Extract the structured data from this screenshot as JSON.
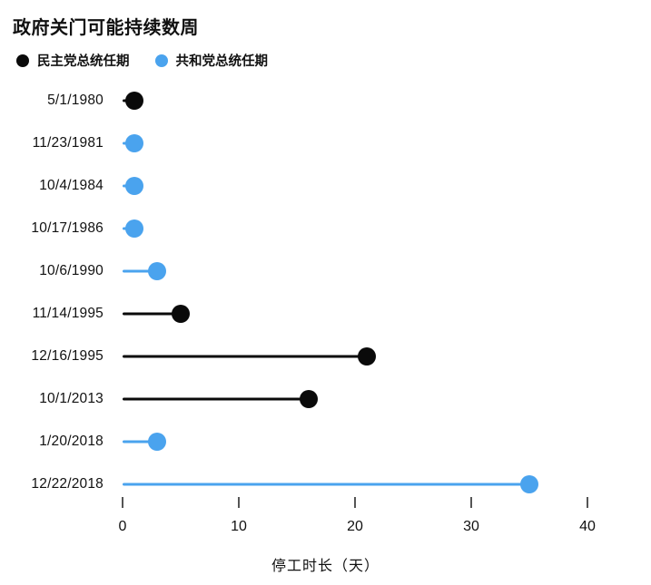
{
  "title": "政府关门可能持续数周",
  "legend": [
    {
      "label": "民主党总统任期",
      "party": "democrat"
    },
    {
      "label": "共和党总统任期",
      "party": "republican"
    }
  ],
  "colors": {
    "democrat": "#0a0a0a",
    "republican": "#4aa3ee",
    "background": "#ffffff",
    "tick": "#555555",
    "text": "#111111"
  },
  "chart_data": {
    "type": "bar",
    "variant": "horizontal-lollipop",
    "title": "政府关门可能持续数周",
    "categories": [
      "5/1/1980",
      "11/23/1981",
      "10/4/1984",
      "10/17/1986",
      "10/6/1990",
      "11/14/1995",
      "12/16/1995",
      "10/1/2013",
      "1/20/2018",
      "12/22/2018"
    ],
    "values": [
      1,
      1,
      1,
      1,
      3,
      5,
      21,
      16,
      3,
      35
    ],
    "points": [
      {
        "date": "5/1/1980",
        "days": 1,
        "party": "democrat"
      },
      {
        "date": "11/23/1981",
        "days": 1,
        "party": "republican"
      },
      {
        "date": "10/4/1984",
        "days": 1,
        "party": "republican"
      },
      {
        "date": "10/17/1986",
        "days": 1,
        "party": "republican"
      },
      {
        "date": "10/6/1990",
        "days": 3,
        "party": "republican"
      },
      {
        "date": "11/14/1995",
        "days": 5,
        "party": "democrat"
      },
      {
        "date": "12/16/1995",
        "days": 21,
        "party": "democrat"
      },
      {
        "date": "10/1/2013",
        "days": 16,
        "party": "democrat"
      },
      {
        "date": "1/20/2018",
        "days": 3,
        "party": "republican"
      },
      {
        "date": "12/22/2018",
        "days": 35,
        "party": "republican"
      }
    ],
    "xlabel": "停工时长（天）",
    "ylabel": "",
    "xlim": [
      0,
      45
    ],
    "xticks": [
      0,
      10,
      20,
      30,
      40
    ],
    "grid": false,
    "legend_position": "top-left"
  }
}
